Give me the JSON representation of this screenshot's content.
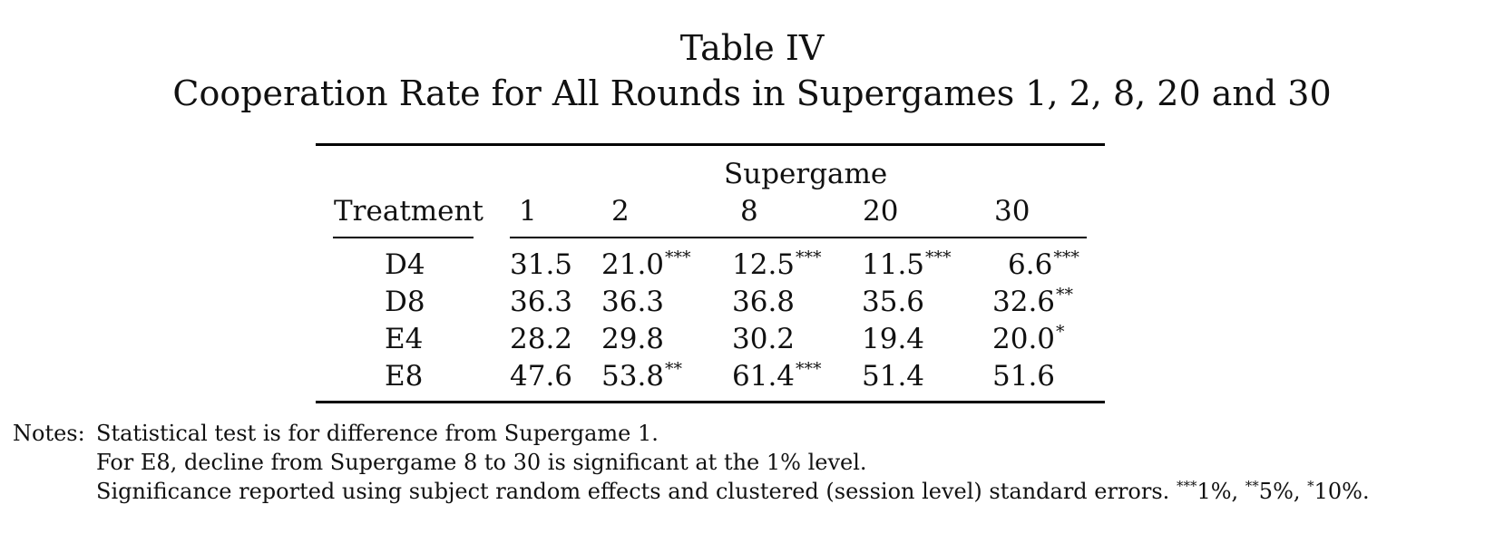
{
  "table": {
    "label": "Table IV",
    "caption": "Cooperation Rate for All Rounds in Supergames 1, 2, 8, 20 and 30",
    "group_header": "Supergame",
    "row_header": "Treatment",
    "columns": [
      "1",
      "2",
      "8",
      "20",
      "30"
    ],
    "rows": [
      {
        "treatment": "D4",
        "cells": [
          {
            "value": "31.5",
            "stars": ""
          },
          {
            "value": "21.0",
            "stars": "***"
          },
          {
            "value": "12.5",
            "stars": "***"
          },
          {
            "value": "11.5",
            "stars": "***"
          },
          {
            "value": "6.6",
            "stars": "***"
          }
        ]
      },
      {
        "treatment": "D8",
        "cells": [
          {
            "value": "36.3",
            "stars": ""
          },
          {
            "value": "36.3",
            "stars": ""
          },
          {
            "value": "36.8",
            "stars": ""
          },
          {
            "value": "35.6",
            "stars": ""
          },
          {
            "value": "32.6",
            "stars": "**"
          }
        ]
      },
      {
        "treatment": "E4",
        "cells": [
          {
            "value": "28.2",
            "stars": ""
          },
          {
            "value": "29.8",
            "stars": ""
          },
          {
            "value": "30.2",
            "stars": ""
          },
          {
            "value": "19.4",
            "stars": ""
          },
          {
            "value": "20.0",
            "stars": "*"
          }
        ]
      },
      {
        "treatment": "E8",
        "cells": [
          {
            "value": "47.6",
            "stars": ""
          },
          {
            "value": "53.8",
            "stars": "**"
          },
          {
            "value": "61.4",
            "stars": "***"
          },
          {
            "value": "51.4",
            "stars": ""
          },
          {
            "value": "51.6",
            "stars": ""
          }
        ]
      }
    ]
  },
  "notes": {
    "label": "Notes:",
    "line1": "Statistical test is for difference from Supergame 1.",
    "line2": "For E8, decline from Supergame 8 to 30 is significant at the 1% level.",
    "line3_text": "Significance reported using subject random effects and clustered (session level) standard errors.",
    "sig_levels": [
      {
        "stars": "***",
        "level": "1%,"
      },
      {
        "stars": "**",
        "level": "5%,"
      },
      {
        "stars": "*",
        "level": "10%."
      }
    ]
  }
}
